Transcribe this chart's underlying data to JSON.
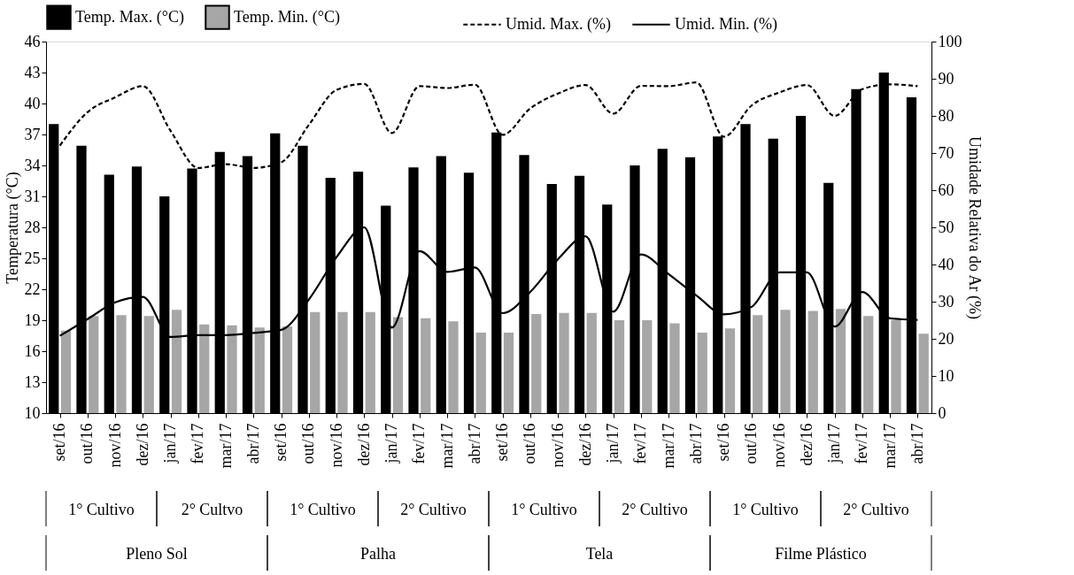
{
  "chart_data": {
    "type": "bar",
    "ylabel": "Temperatura (°C)",
    "y2label": "Umidade Relativa do Ar (%)",
    "categories": [
      "set/16",
      "out/16",
      "nov/16",
      "dez/16",
      "jan/17",
      "fev/17",
      "mar/17",
      "abr/17",
      "set/16",
      "out/16",
      "nov/16",
      "dez/16",
      "jan/17",
      "fev/17",
      "mar/17",
      "abr/17",
      "set/16",
      "out/16",
      "nov/16",
      "dez/16",
      "jan/17",
      "fev/17",
      "mar/17",
      "abr/17",
      "set/16",
      "out/16",
      "nov/16",
      "dez/16",
      "jan/17",
      "fev/17",
      "mar/17",
      "abr/17"
    ],
    "series": [
      {
        "name": "Temp. Max. (°C)",
        "color": "#000000",
        "values": [
          38.0,
          35.9,
          33.1,
          33.9,
          31.0,
          33.7,
          35.3,
          34.9,
          37.1,
          35.9,
          32.8,
          33.4,
          30.1,
          33.8,
          34.9,
          33.3,
          37.2,
          35.0,
          32.2,
          33.0,
          30.2,
          34.0,
          35.6,
          34.8,
          36.8,
          38.0,
          36.6,
          38.8,
          32.3,
          41.4,
          43.0,
          40.6
        ]
      },
      {
        "name": "Temp. Min. (°C)",
        "color": "#a6a6a6",
        "values": [
          18.0,
          19.4,
          19.5,
          19.4,
          20.0,
          18.6,
          18.5,
          18.3,
          18.4,
          19.8,
          19.8,
          19.8,
          19.3,
          19.2,
          18.9,
          17.8,
          17.8,
          19.6,
          19.7,
          19.7,
          19.0,
          19.0,
          18.7,
          17.8,
          18.2,
          19.5,
          20.0,
          19.9,
          20.1,
          19.4,
          19.0,
          17.7
        ]
      },
      {
        "name": "Umid. Max. (%)",
        "color": "#000000",
        "type": "line",
        "axis": "y2",
        "line_style": "dashed",
        "values": [
          72,
          81,
          85,
          88,
          76,
          66,
          67,
          66,
          67.5,
          77.6,
          87,
          88.6,
          75.4,
          88,
          87.5,
          88.4,
          74.9,
          82,
          86,
          88.3,
          80.6,
          88.1,
          88,
          89,
          74.4,
          82.8,
          86.3,
          88.3,
          80,
          87.2,
          88.5,
          88
        ]
      },
      {
        "name": "Umid. Min. (%)",
        "color": "#000000",
        "type": "line",
        "axis": "y2",
        "line_style": "solid",
        "values": [
          20.8,
          25.3,
          29.8,
          31.3,
          20.5,
          21,
          21,
          21.6,
          22.4,
          30.6,
          42,
          50,
          23,
          43.6,
          38,
          39.2,
          26.9,
          32.6,
          41.4,
          47.6,
          27.3,
          42.7,
          37.4,
          31.7,
          26.6,
          28.6,
          37.9,
          37.9,
          23.3,
          32.6,
          25.5,
          25.1
        ]
      }
    ],
    "ylim": [
      10,
      46
    ],
    "yticks": [
      10,
      13,
      16,
      19,
      22,
      25,
      28,
      31,
      34,
      37,
      40,
      43,
      46
    ],
    "y2lim": [
      0,
      100
    ],
    "y2ticks": [
      0,
      10,
      20,
      30,
      40,
      50,
      60,
      70,
      80,
      90,
      100
    ],
    "annotations": [
      "1° Cultivo",
      "2° Cultvo",
      "1° Cultivo",
      "2° Cultivo",
      "1° Cultivo",
      "2° Cultivo",
      "1° Cultivo",
      "2° Cultivo",
      "Pleno Sol",
      "Palha",
      "Tela",
      "Filme Plástico"
    ],
    "legend": "top",
    "grid": false,
    "marker": "none"
  }
}
